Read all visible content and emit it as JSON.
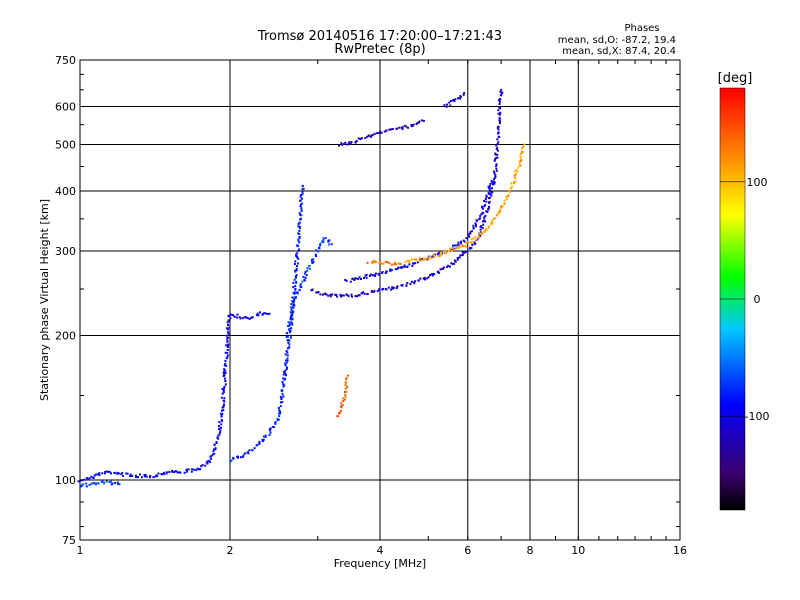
{
  "chart_data": {
    "type": "scatter",
    "title": "Tromsø 20140516 17:20:00–17:21:43",
    "subtitle": "RwPretec (8p)",
    "xlabel": "Frequency [MHz]",
    "ylabel": "Stationary phase Virtual Height [km]",
    "x_scale": "log",
    "y_scale": "log",
    "xlim": [
      1,
      16
    ],
    "ylim": [
      75,
      750
    ],
    "x_ticks": [
      1,
      2,
      4,
      6,
      8,
      10,
      16
    ],
    "y_ticks": [
      75,
      100,
      200,
      300,
      400,
      500,
      600,
      750
    ],
    "grid": true,
    "stats": {
      "heading": "Phases",
      "o_line": "mean, sd,O: -87.2, 19.4",
      "x_line": "mean, sd,X: 87.4, 20.4"
    },
    "colorbar": {
      "label": "[deg]",
      "range": [
        -180,
        180
      ],
      "ticks": [
        100,
        0,
        -100
      ],
      "colors": [
        "#000000",
        "#3c0070",
        "#0000ff",
        "#00c8ff",
        "#00ff00",
        "#ffff00",
        "#ff8000",
        "#ff0000"
      ]
    },
    "traces": [
      {
        "phase": -95,
        "points": [
          [
            1.0,
            100
          ],
          [
            1.05,
            101
          ],
          [
            1.1,
            103
          ],
          [
            1.15,
            104
          ],
          [
            1.2,
            103
          ],
          [
            1.3,
            102
          ],
          [
            1.4,
            102
          ],
          [
            1.5,
            104
          ],
          [
            1.6,
            104
          ],
          [
            1.7,
            105
          ],
          [
            1.75,
            106
          ],
          [
            1.8,
            108
          ],
          [
            1.85,
            114
          ],
          [
            1.9,
            125
          ],
          [
            1.93,
            140
          ],
          [
            1.95,
            160
          ],
          [
            1.97,
            185
          ],
          [
            1.98,
            205
          ],
          [
            2.0,
            222
          ],
          [
            2.1,
            218
          ],
          [
            2.2,
            218
          ],
          [
            2.3,
            222
          ],
          [
            2.4,
            222
          ]
        ]
      },
      {
        "phase": -82,
        "points": [
          [
            2.0,
            110
          ],
          [
            2.1,
            112
          ],
          [
            2.2,
            115
          ],
          [
            2.3,
            120
          ],
          [
            2.4,
            125
          ],
          [
            2.5,
            135
          ],
          [
            2.55,
            150
          ],
          [
            2.6,
            180
          ],
          [
            2.65,
            210
          ],
          [
            2.7,
            260
          ],
          [
            2.75,
            320
          ],
          [
            2.78,
            380
          ],
          [
            2.8,
            410
          ]
        ]
      },
      {
        "phase": -75,
        "points": [
          [
            2.6,
            200
          ],
          [
            2.7,
            240
          ],
          [
            2.8,
            260
          ],
          [
            2.9,
            280
          ],
          [
            3.0,
            300
          ],
          [
            3.1,
            320
          ],
          [
            3.2,
            310
          ]
        ]
      },
      {
        "phase": -110,
        "points": [
          [
            2.9,
            250
          ],
          [
            3.0,
            245
          ],
          [
            3.2,
            242
          ],
          [
            3.5,
            242
          ],
          [
            4.0,
            248
          ],
          [
            4.5,
            255
          ],
          [
            5.0,
            265
          ],
          [
            5.5,
            280
          ],
          [
            6.0,
            300
          ],
          [
            6.3,
            320
          ],
          [
            6.6,
            370
          ],
          [
            6.8,
            430
          ],
          [
            6.9,
            520
          ],
          [
            6.95,
            600
          ],
          [
            7.0,
            650
          ]
        ]
      },
      {
        "phase": -100,
        "points": [
          [
            3.4,
            260
          ],
          [
            3.6,
            262
          ],
          [
            4.0,
            270
          ],
          [
            4.5,
            278
          ],
          [
            5.0,
            290
          ],
          [
            5.5,
            300
          ],
          [
            6.0,
            320
          ],
          [
            6.4,
            360
          ],
          [
            6.7,
            420
          ]
        ]
      },
      {
        "phase": -115,
        "points": [
          [
            3.3,
            500
          ],
          [
            3.5,
            505
          ],
          [
            3.8,
            520
          ],
          [
            4.0,
            530
          ],
          [
            4.3,
            540
          ],
          [
            4.6,
            545
          ],
          [
            4.9,
            560
          ]
        ]
      },
      {
        "phase": -110,
        "points": [
          [
            5.4,
            600
          ],
          [
            5.6,
            615
          ],
          [
            5.8,
            630
          ],
          [
            5.9,
            640
          ]
        ]
      },
      {
        "phase": 110,
        "points": [
          [
            4.5,
            285
          ],
          [
            5.0,
            290
          ],
          [
            5.5,
            300
          ],
          [
            6.0,
            310
          ],
          [
            6.5,
            330
          ],
          [
            7.0,
            365
          ],
          [
            7.3,
            400
          ],
          [
            7.6,
            450
          ],
          [
            7.8,
            500
          ]
        ]
      },
      {
        "phase": 130,
        "points": [
          [
            3.8,
            285
          ],
          [
            4.1,
            283
          ],
          [
            4.4,
            282
          ]
        ]
      },
      {
        "phase": 140,
        "points": [
          [
            3.3,
            135
          ],
          [
            3.4,
            150
          ],
          [
            3.45,
            165
          ]
        ]
      },
      {
        "phase": -70,
        "points": [
          [
            1.0,
            97
          ],
          [
            1.05,
            98
          ],
          [
            1.1,
            99
          ],
          [
            1.2,
            98
          ]
        ]
      }
    ]
  }
}
